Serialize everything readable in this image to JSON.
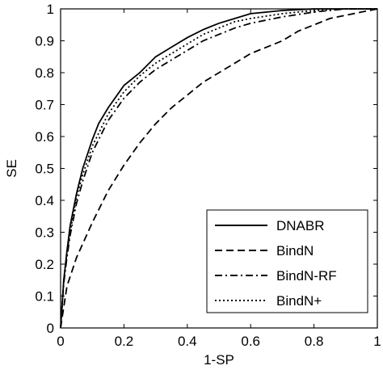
{
  "chart_data": {
    "type": "line",
    "title": "",
    "xlabel": "1-SP",
    "ylabel": "SE",
    "xlim": [
      0,
      1
    ],
    "ylim": [
      0,
      1
    ],
    "xticks": [
      0,
      0.2,
      0.4,
      0.6,
      0.8,
      1
    ],
    "yticks": [
      0,
      0.1,
      0.2,
      0.3,
      0.4,
      0.5,
      0.6,
      0.7,
      0.8,
      0.9,
      1
    ],
    "xtick_labels": [
      "0",
      "0.2",
      "0.4",
      "0.6",
      "0.8",
      "1"
    ],
    "ytick_labels": [
      "0",
      "0.1",
      "0.2",
      "0.3",
      "0.4",
      "0.5",
      "0.6",
      "0.7",
      "0.8",
      "0.9",
      "1"
    ],
    "grid": false,
    "legend_position": "bottom-right",
    "series": [
      {
        "name": "DNABR",
        "line_style": "solid",
        "color": "#000000",
        "x": [
          0,
          0.01,
          0.02,
          0.03,
          0.05,
          0.07,
          0.1,
          0.12,
          0.15,
          0.2,
          0.25,
          0.3,
          0.35,
          0.4,
          0.45,
          0.5,
          0.55,
          0.6,
          0.7,
          0.8,
          0.9,
          1
        ],
        "y": [
          0,
          0.15,
          0.24,
          0.32,
          0.42,
          0.5,
          0.59,
          0.64,
          0.69,
          0.76,
          0.8,
          0.85,
          0.88,
          0.91,
          0.935,
          0.955,
          0.97,
          0.985,
          0.995,
          1,
          1,
          1
        ]
      },
      {
        "name": "BindN",
        "line_style": "dashed",
        "color": "#000000",
        "x": [
          0,
          0.02,
          0.05,
          0.1,
          0.15,
          0.2,
          0.25,
          0.3,
          0.35,
          0.4,
          0.45,
          0.5,
          0.55,
          0.6,
          0.65,
          0.7,
          0.75,
          0.8,
          0.85,
          0.9,
          0.95,
          1
        ],
        "y": [
          0,
          0.13,
          0.22,
          0.33,
          0.43,
          0.51,
          0.58,
          0.64,
          0.69,
          0.73,
          0.77,
          0.8,
          0.83,
          0.86,
          0.88,
          0.9,
          0.93,
          0.95,
          0.97,
          0.98,
          0.99,
          1
        ]
      },
      {
        "name": "BindN-RF",
        "line_style": "dashdot",
        "color": "#000000",
        "x": [
          0,
          0.01,
          0.02,
          0.03,
          0.05,
          0.07,
          0.1,
          0.15,
          0.2,
          0.25,
          0.3,
          0.35,
          0.4,
          0.45,
          0.5,
          0.55,
          0.6,
          0.7,
          0.8,
          0.9,
          1
        ],
        "y": [
          0,
          0.14,
          0.22,
          0.29,
          0.39,
          0.46,
          0.55,
          0.65,
          0.72,
          0.77,
          0.81,
          0.84,
          0.87,
          0.9,
          0.92,
          0.94,
          0.955,
          0.975,
          0.99,
          1,
          1
        ]
      },
      {
        "name": "BindN+",
        "line_style": "dotted",
        "color": "#000000",
        "x": [
          0,
          0.01,
          0.02,
          0.03,
          0.05,
          0.07,
          0.1,
          0.15,
          0.2,
          0.25,
          0.3,
          0.35,
          0.4,
          0.45,
          0.5,
          0.55,
          0.6,
          0.7,
          0.8,
          0.9,
          1
        ],
        "y": [
          0,
          0.15,
          0.23,
          0.3,
          0.41,
          0.48,
          0.57,
          0.67,
          0.74,
          0.79,
          0.83,
          0.86,
          0.89,
          0.92,
          0.94,
          0.96,
          0.97,
          0.985,
          0.995,
          1,
          1
        ]
      }
    ]
  }
}
